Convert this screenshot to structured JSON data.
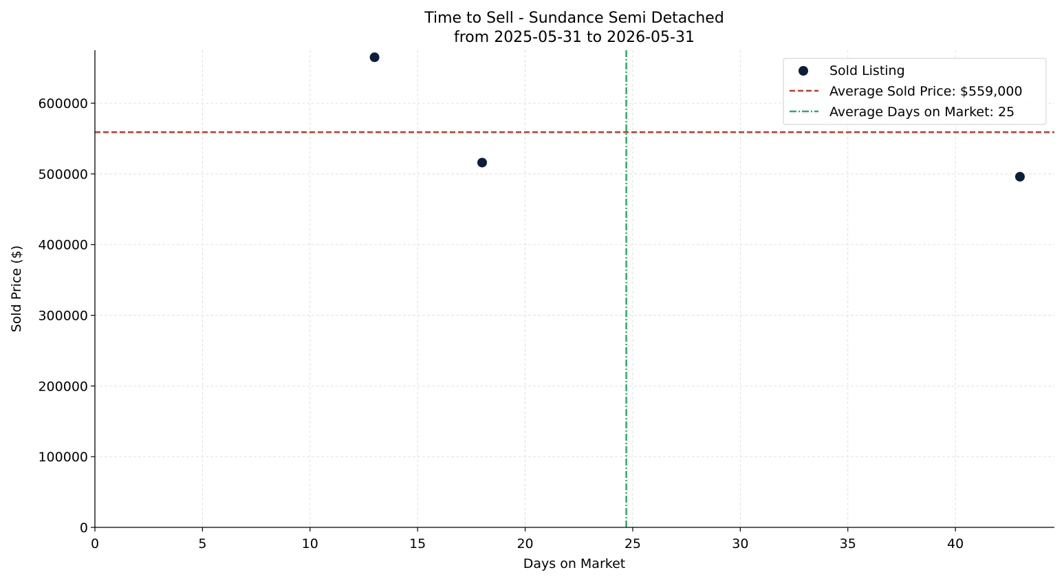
{
  "chart_data": {
    "type": "scatter",
    "title": "Time to Sell - Sundance Semi Detached",
    "subtitle": "from 2025-05-31 to 2026-05-31",
    "xlabel": "Days on Market",
    "ylabel": "Sold Price ($)",
    "xlim": [
      0,
      44.6
    ],
    "ylim": [
      0,
      675000
    ],
    "x_ticks": [
      0,
      5,
      10,
      15,
      20,
      25,
      30,
      35,
      40
    ],
    "y_ticks": [
      0,
      100000,
      200000,
      300000,
      400000,
      500000,
      600000
    ],
    "grid": true,
    "legend_position": "top-right",
    "series": [
      {
        "name": "Sold Listing",
        "color": "#0b1f3a",
        "points": [
          {
            "x": 13,
            "y": 665000
          },
          {
            "x": 18,
            "y": 516000
          },
          {
            "x": 43,
            "y": 496000
          }
        ]
      }
    ],
    "reference_lines": [
      {
        "orientation": "horizontal",
        "value": 559000,
        "label": "Average Sold Price: $559,000",
        "color": "#c0392b",
        "style": "dashed"
      },
      {
        "orientation": "vertical",
        "value": 24.7,
        "label": "Average Days on Market: 25",
        "color": "#27ae60",
        "style": "dashdot"
      }
    ]
  }
}
